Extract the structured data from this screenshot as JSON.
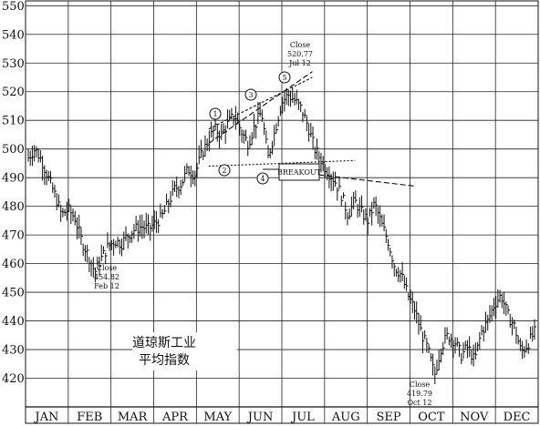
{
  "chart_data": {
    "type": "bar",
    "subtype": "ohlc-daily",
    "title_lines": [
      "道琼斯工业",
      "平均指数"
    ],
    "categories": [
      "JAN",
      "FEB",
      "MAR",
      "APR",
      "MAY",
      "JUN",
      "JUL",
      "AUG",
      "SEP",
      "OCT",
      "NOV",
      "DEC"
    ],
    "y_ticks": [
      "420",
      "430",
      "440",
      "450",
      "460",
      "470",
      "480",
      "490",
      "500",
      "510",
      "520",
      "530",
      "540",
      "550"
    ],
    "ylim": [
      410,
      552
    ],
    "grid": true,
    "weekly_closes": [
      497,
      500,
      496,
      490,
      484,
      477,
      479,
      476,
      468,
      463,
      457,
      462,
      466,
      468,
      467,
      470,
      472,
      473,
      472,
      474,
      476,
      481,
      486,
      488,
      493,
      491,
      498,
      503,
      507,
      505,
      509,
      512,
      506,
      502,
      508,
      513,
      497,
      506,
      516,
      519,
      517,
      514,
      508,
      500,
      496,
      492,
      489,
      484,
      477,
      482,
      478,
      475,
      481,
      474,
      468,
      459,
      456,
      449,
      444,
      436,
      430,
      421,
      431,
      435,
      433,
      428,
      431,
      426,
      436,
      440,
      446,
      449,
      442,
      438,
      429,
      432,
      436
    ],
    "annotations": {
      "feb": [
        "Close",
        "454.82",
        "Feb 12"
      ],
      "jul": [
        "Close",
        "520.77",
        "Jul 12"
      ],
      "oct": [
        "Close",
        "419.79",
        "Oct 12"
      ],
      "breakout": "BREAKOUT",
      "wave_labels": [
        "1",
        "2",
        "3",
        "4",
        "5"
      ]
    },
    "trendlines": [
      {
        "from": [
          "MAY",
          502
        ],
        "to": [
          "JUL",
          527
        ]
      },
      {
        "from": [
          "MAY",
          507
        ],
        "to": [
          "JUL",
          525
        ]
      },
      {
        "from": [
          "MAY",
          494
        ],
        "to": [
          "AUG",
          496
        ]
      },
      {
        "from": [
          "JUL",
          492
        ],
        "to": [
          "SEP",
          487
        ]
      }
    ]
  }
}
